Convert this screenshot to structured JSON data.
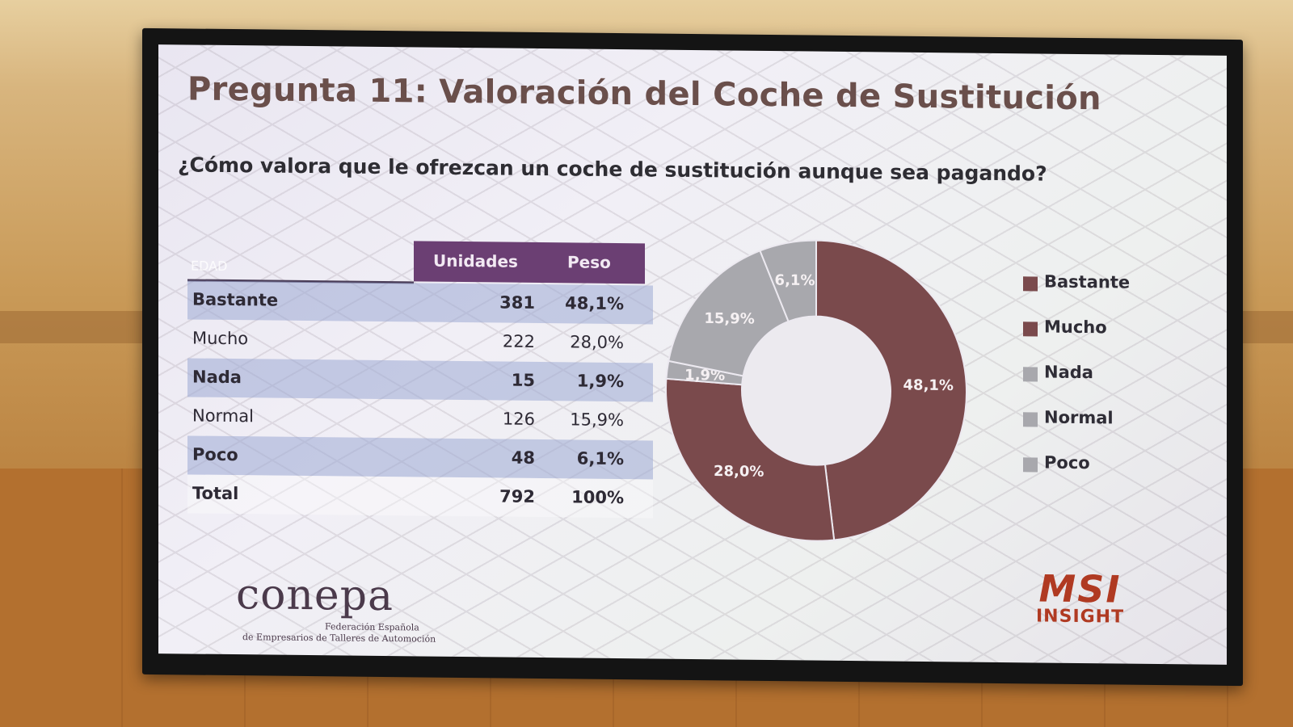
{
  "slide": {
    "title": "Pregunta 11: Valoración del Coche de Sustitución",
    "question": "¿Cómo valora que le ofrezcan un coche de sustitución aunque sea pagando?"
  },
  "table": {
    "header_row_label": "EDAD",
    "col_units": "Unidades",
    "col_weight": "Peso",
    "rows": [
      {
        "label": "Bastante",
        "units": "381",
        "weight": "48,1%"
      },
      {
        "label": "Mucho",
        "units": "222",
        "weight": "28,0%"
      },
      {
        "label": "Nada",
        "units": "15",
        "weight": "1,9%"
      },
      {
        "label": "Normal",
        "units": "126",
        "weight": "15,9%"
      },
      {
        "label": "Poco",
        "units": "48",
        "weight": "6,1%"
      }
    ],
    "total": {
      "label": "Total",
      "units": "792",
      "weight": "100%"
    }
  },
  "chart_data": {
    "type": "pie",
    "subtype": "donut",
    "categories": [
      "Bastante",
      "Mucho",
      "Nada",
      "Normal",
      "Poco"
    ],
    "values": [
      48.1,
      28.0,
      1.9,
      15.9,
      6.1
    ],
    "units": [
      381,
      222,
      15,
      126,
      48
    ],
    "data_labels": [
      "48,1%",
      "28,0%",
      "1,9%",
      "15,9%",
      "6,1%"
    ],
    "colors": [
      "#7a4a4c",
      "#7a4a4c",
      "#a8a8ad",
      "#a8a8ad",
      "#a8a8ad"
    ],
    "legend": {
      "position": "right",
      "entries": [
        "Bastante",
        "Mucho",
        "Nada",
        "Normal",
        "Poco"
      ]
    }
  },
  "logos": {
    "left_word": "conepa",
    "left_sub1": "Federación Española",
    "left_sub2": "de Empresarios de Talleres de Automoción",
    "right_word": "MSI",
    "right_sub": "INSIGHT"
  }
}
